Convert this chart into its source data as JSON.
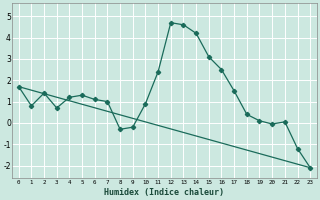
{
  "xlabel": "Humidex (Indice chaleur)",
  "bg_color": "#cce8e0",
  "plot_bg_color": "#cce8e0",
  "grid_color": "#ffffff",
  "line_color": "#1a6b5a",
  "x_ticks": [
    0,
    1,
    2,
    3,
    4,
    5,
    6,
    7,
    8,
    9,
    10,
    11,
    12,
    13,
    14,
    15,
    16,
    17,
    18,
    19,
    20,
    21,
    22,
    23
  ],
  "ylim": [
    -2.6,
    5.6
  ],
  "xlim": [
    -0.5,
    23.5
  ],
  "y_ticks": [
    -2,
    -1,
    0,
    1,
    2,
    3,
    4,
    5
  ],
  "series_x": [
    0,
    1,
    2,
    3,
    4,
    5,
    6,
    7,
    8,
    9,
    10,
    11,
    12,
    13,
    14,
    15,
    16,
    17,
    18,
    19,
    20,
    21,
    22,
    23
  ],
  "series_y": [
    1.7,
    0.8,
    1.4,
    0.7,
    1.2,
    1.3,
    1.1,
    1.0,
    -0.3,
    -0.2,
    0.9,
    2.4,
    4.7,
    4.6,
    4.2,
    3.1,
    2.5,
    1.5,
    0.4,
    0.1,
    -0.05,
    0.05,
    -1.2,
    -2.1
  ],
  "trend_x": [
    0,
    23
  ],
  "trend_y": [
    1.7,
    -2.1
  ]
}
